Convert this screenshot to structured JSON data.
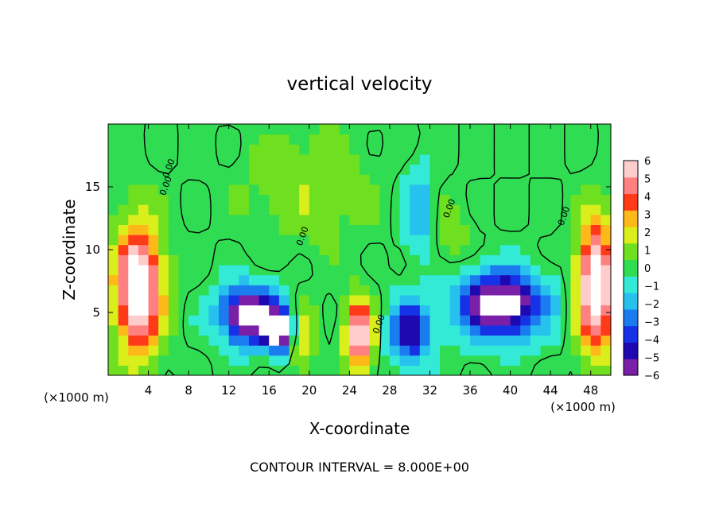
{
  "chart_data": {
    "type": "heatmap",
    "title": "vertical velocity",
    "xlabel": "X-coordinate",
    "ylabel": "Z-coordinate",
    "x_unit_label": "(×1000 m)",
    "footer": "CONTOUR INTERVAL = 8.000E+00",
    "xlim": [
      0,
      50
    ],
    "ylim": [
      0,
      20
    ],
    "x_ticks": [
      4,
      8,
      12,
      16,
      20,
      24,
      28,
      32,
      36,
      40,
      44,
      48
    ],
    "x_tick_labels": [
      "4",
      "8",
      "12",
      "16",
      "20",
      "24",
      "28",
      "32",
      "36",
      "40",
      "44",
      "48"
    ],
    "y_ticks": [
      5,
      10,
      15
    ],
    "y_tick_labels": [
      "5",
      "10",
      "15"
    ],
    "contour_labels": [
      "0.00",
      "0.00",
      "0.00",
      "0.00",
      "0.00",
      "0.00"
    ],
    "colorbar": {
      "min": -6,
      "max": 6,
      "ticks": [
        6,
        5,
        4,
        3,
        2,
        1,
        0,
        -1,
        -2,
        -3,
        -4,
        -5,
        -6
      ],
      "tick_labels": [
        "6",
        "5",
        "4",
        "3",
        "2",
        "1",
        "0",
        "−1",
        "−2",
        "−3",
        "−4",
        "−5",
        "−6"
      ],
      "colors": [
        "#7a1fa8",
        "#1e08b0",
        "#1632e6",
        "#1b7cf0",
        "#27c1ee",
        "#33ead7",
        "#2fdc52",
        "#6fe01f",
        "#d9ee1a",
        "#ffb81a",
        "#ff3a18",
        "#ff8080",
        "#ffcccc"
      ]
    },
    "features": [
      {
        "name": "updraft-left",
        "x": 3.0,
        "z": 7.0,
        "sx": 2.3,
        "sz": 5.0,
        "value": 6
      },
      {
        "name": "updraft-right",
        "x": 48.5,
        "z": 7.0,
        "sx": 1.8,
        "sz": 5.0,
        "value": 6
      },
      {
        "name": "downdraft-14",
        "x": 14.0,
        "z": 4.8,
        "sx": 2.8,
        "sz": 2.2,
        "value": -6
      },
      {
        "name": "downdraft-16",
        "x": 17.0,
        "z": 3.6,
        "sx": 1.4,
        "sz": 1.6,
        "value": -6
      },
      {
        "name": "downdraft-38-42",
        "x": 39.0,
        "z": 5.6,
        "sx": 4.2,
        "sz": 2.6,
        "value": -6
      },
      {
        "name": "updraft-25",
        "x": 25.0,
        "z": 3.2,
        "sx": 1.3,
        "sz": 2.8,
        "value": 5
      },
      {
        "name": "updraft-19",
        "x": 19.2,
        "z": 3.0,
        "sx": 1.2,
        "sz": 2.6,
        "value": 2
      },
      {
        "name": "lift-upper-20",
        "x": 20.0,
        "z": 15.0,
        "sx": 6.0,
        "sz": 4.5,
        "value": 1
      },
      {
        "name": "lift-upper-34",
        "x": 34.0,
        "z": 11.0,
        "sx": 2.0,
        "sz": 3.0,
        "value": 0.8
      },
      {
        "name": "sink-upper-31",
        "x": 31.0,
        "z": 13.0,
        "sx": 1.6,
        "sz": 3.5,
        "value": -1.8
      },
      {
        "name": "sink-30",
        "x": 30.0,
        "z": 3.5,
        "sx": 2.0,
        "sz": 2.5,
        "value": -4
      }
    ]
  }
}
